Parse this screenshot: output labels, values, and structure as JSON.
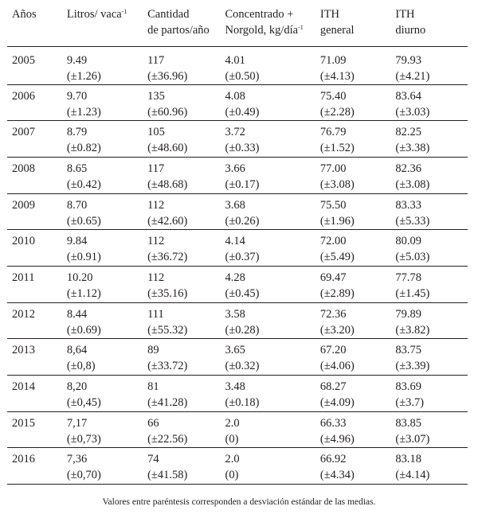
{
  "table": {
    "headers": [
      {
        "line1": "Años",
        "line2": "",
        "sup": ""
      },
      {
        "line1": "Litros/ vaca",
        "line2": "",
        "sup": "-1"
      },
      {
        "line1": "Cantidad",
        "line2": "de partos/año",
        "sup": ""
      },
      {
        "line1": "Concentrado +",
        "line2": "Norgold, kg/día",
        "sup": "-1"
      },
      {
        "line1": "ITH",
        "line2": "general",
        "sup": ""
      },
      {
        "line1": "ITH",
        "line2": "diurno",
        "sup": ""
      }
    ],
    "rows": [
      {
        "year": "2005",
        "litros": [
          "9.49",
          "(±1.26)"
        ],
        "partos": [
          "117",
          "(±36.96)"
        ],
        "conc": [
          "4.01",
          "(±0.50)"
        ],
        "ith_gen": [
          "71.09",
          "(±4.13)"
        ],
        "ith_diu": [
          "79.93",
          "(±4.21)"
        ]
      },
      {
        "year": "2006",
        "litros": [
          "9.70",
          "(±1.23)"
        ],
        "partos": [
          "135",
          "(±60.96)"
        ],
        "conc": [
          "4.08",
          "(±0.49)"
        ],
        "ith_gen": [
          "75.40",
          "(±2.28)"
        ],
        "ith_diu": [
          "83.64",
          "(±3.03)"
        ]
      },
      {
        "year": "2007",
        "litros": [
          "8.79",
          "(±0.82)"
        ],
        "partos": [
          "105",
          "(±48.60)"
        ],
        "conc": [
          "3.72",
          "(±0.33)"
        ],
        "ith_gen": [
          "76.79",
          "(±1.52)"
        ],
        "ith_diu": [
          "82.25",
          "(±3.38)"
        ]
      },
      {
        "year": "2008",
        "litros": [
          "8.65",
          "(±0.42)"
        ],
        "partos": [
          "117",
          "(±48.68)"
        ],
        "conc": [
          "3.66",
          "(±0.17)"
        ],
        "ith_gen": [
          "77.00",
          "(±3.08)"
        ],
        "ith_diu": [
          "82.36",
          "(±3.08)"
        ]
      },
      {
        "year": "2009",
        "litros": [
          "8.70",
          "(±0.65)"
        ],
        "partos": [
          "112",
          "(±42.60)"
        ],
        "conc": [
          "3.68",
          "(±0.26)"
        ],
        "ith_gen": [
          "75.50",
          "(±1.96)"
        ],
        "ith_diu": [
          "83.33",
          "(±5.33)"
        ]
      },
      {
        "year": "2010",
        "litros": [
          "9.84",
          "(±0.91)"
        ],
        "partos": [
          "112",
          "(±36.72)"
        ],
        "conc": [
          "4.14",
          "(±0.37)"
        ],
        "ith_gen": [
          "72.00",
          "(±5.49)"
        ],
        "ith_diu": [
          "80.09",
          "(±5.03)"
        ]
      },
      {
        "year": "2011",
        "litros": [
          "10.20",
          "(±1.12)"
        ],
        "partos": [
          "112",
          "(±35.16)"
        ],
        "conc": [
          "4.28",
          "(±0.45)"
        ],
        "ith_gen": [
          "69.47",
          "(±2.89)"
        ],
        "ith_diu": [
          "77.78",
          "(±1.45)"
        ]
      },
      {
        "year": "2012",
        "litros": [
          "8.44",
          "(±0.69)"
        ],
        "partos": [
          "111",
          "(±55.32)"
        ],
        "conc": [
          "3.58",
          "(±0.28)"
        ],
        "ith_gen": [
          "72.36",
          "(±3.20)"
        ],
        "ith_diu": [
          "79.89",
          "(±3.82)"
        ]
      },
      {
        "year": "2013",
        "litros": [
          "8,64",
          "(±0,8)"
        ],
        "partos": [
          "89",
          "(±33.72)"
        ],
        "conc": [
          "3.65",
          "(±0.32)"
        ],
        "ith_gen": [
          "67.20",
          "(±4.06)"
        ],
        "ith_diu": [
          "83.75",
          "(±3.39)"
        ]
      },
      {
        "year": "2014",
        "litros": [
          "8,20",
          "(±0,45)"
        ],
        "partos": [
          "81",
          "(±41.28)"
        ],
        "conc": [
          "3.48",
          "(±0.18)"
        ],
        "ith_gen": [
          "68.27",
          "(±4.09)"
        ],
        "ith_diu": [
          "83.69",
          "(±3.7)"
        ]
      },
      {
        "year": "2015",
        "litros": [
          "7,17",
          "(±0,73)"
        ],
        "partos": [
          "66",
          "(±22.56)"
        ],
        "conc": [
          "2.0",
          "(0)"
        ],
        "ith_gen": [
          "66.33",
          "(±4.96)"
        ],
        "ith_diu": [
          "83.85",
          "(±3.07)"
        ]
      },
      {
        "year": "2016",
        "litros": [
          "7,36",
          "(±0,70)"
        ],
        "partos": [
          "74",
          "(±41.58)"
        ],
        "conc": [
          "2.0",
          "(0)"
        ],
        "ith_gen": [
          "66.92",
          "(±4.34)"
        ],
        "ith_diu": [
          "83.18",
          "(±4.14)"
        ]
      }
    ]
  },
  "footnote": "Valores entre paréntesis corresponden a desviación estándar de las medias."
}
